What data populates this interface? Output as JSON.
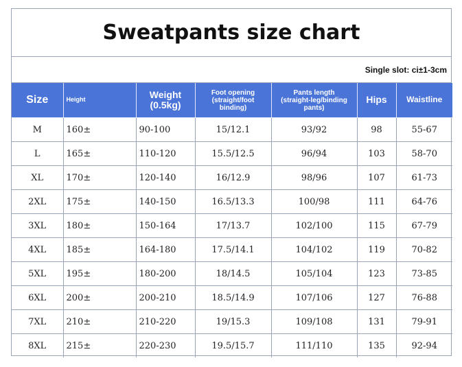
{
  "title": "Sweatpants size chart",
  "note": "Single slot: ci±1-3cm",
  "header": {
    "size": "Size",
    "height": "Height",
    "weight": "Weight\n(0.5kg)",
    "foot_opening": "Foot opening\n(straight/foot\nbinding)",
    "pants_length": "Pants length\n(straight-leg/binding\npants)",
    "hips": "Hips",
    "waistline": "Waistline"
  },
  "rows": [
    {
      "size": "M",
      "height": "160±",
      "weight": "90-100",
      "foot": "15/12.1",
      "length": "93/92",
      "hips": "98",
      "waist": "55-67"
    },
    {
      "size": "L",
      "height": "165±",
      "weight": "110-120",
      "foot": "15.5/12.5",
      "length": "96/94",
      "hips": "103",
      "waist": "58-70"
    },
    {
      "size": "XL",
      "height": "170±",
      "weight": "120-140",
      "foot": "16/12.9",
      "length": "98/96",
      "hips": "107",
      "waist": "61-73"
    },
    {
      "size": "2XL",
      "height": "175±",
      "weight": "140-150",
      "foot": "16.5/13.3",
      "length": "100/98",
      "hips": "111",
      "waist": "64-76"
    },
    {
      "size": "3XL",
      "height": "180±",
      "weight": "150-164",
      "foot": "17/13.7",
      "length": "102/100",
      "hips": "115",
      "waist": "67-79"
    },
    {
      "size": "4XL",
      "height": "185±",
      "weight": "164-180",
      "foot": "17.5/14.1",
      "length": "104/102",
      "hips": "119",
      "waist": "70-82"
    },
    {
      "size": "5XL",
      "height": "195±",
      "weight": "180-200",
      "foot": "18/14.5",
      "length": "105/104",
      "hips": "123",
      "waist": "73-85"
    },
    {
      "size": "6XL",
      "height": "200±",
      "weight": "200-210",
      "foot": "18.5/14.9",
      "length": "107/106",
      "hips": "127",
      "waist": "76-88"
    },
    {
      "size": "7XL",
      "height": "210±",
      "weight": "210-220",
      "foot": "19/15.3",
      "length": "109/108",
      "hips": "131",
      "waist": "79-91"
    },
    {
      "size": "8XL",
      "height": "215±",
      "weight": "220-230",
      "foot": "19.5/15.7",
      "length": "111/110",
      "hips": "135",
      "waist": "92-94"
    }
  ],
  "colors": {
    "header_bg": "#4a74d8",
    "header_text": "#ffffff",
    "border": "#9aa3b5"
  }
}
